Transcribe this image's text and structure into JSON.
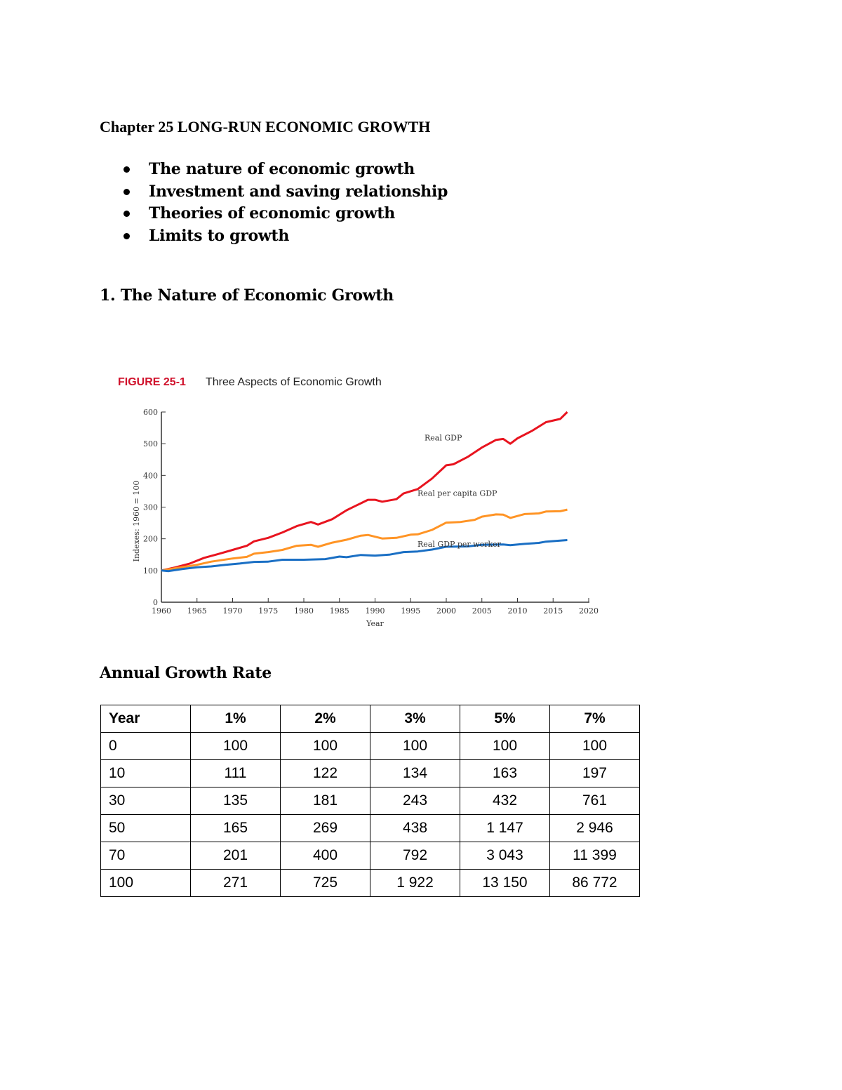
{
  "title": "Chapter 25 LONG-RUN ECONOMIC GROWTH",
  "topics": [
    "The nature of economic growth",
    "Investment and saving relationship",
    "Theories of economic growth",
    "Limits to growth"
  ],
  "section1": "1.  The Nature of Economic Growth",
  "figure": {
    "label": "FIGURE 25-1",
    "title": "Three Aspects of Economic Growth"
  },
  "chart_data": {
    "type": "line",
    "title": "Three Aspects of Economic Growth",
    "xlabel": "Year",
    "ylabel": "Indexes: 1960 = 100",
    "xlim": [
      1960,
      2020
    ],
    "ylim": [
      0,
      600
    ],
    "xticks": [
      1960,
      1965,
      1970,
      1975,
      1980,
      1985,
      1990,
      1995,
      2000,
      2005,
      2010,
      2015,
      2020
    ],
    "yticks": [
      0,
      100,
      200,
      300,
      400,
      500,
      600
    ],
    "grid": false,
    "series": [
      {
        "name": "Real GDP",
        "color": "#e8141f",
        "x": [
          1960,
          1962,
          1964,
          1966,
          1968,
          1970,
          1972,
          1973,
          1975,
          1977,
          1979,
          1981,
          1982,
          1984,
          1986,
          1988,
          1989,
          1990,
          1991,
          1993,
          1994,
          1996,
          1998,
          2000,
          2001,
          2003,
          2005,
          2007,
          2008,
          2009,
          2010,
          2012,
          2014,
          2016,
          2017
        ],
        "y": [
          100,
          110,
          122,
          140,
          152,
          165,
          178,
          192,
          203,
          220,
          240,
          253,
          245,
          262,
          290,
          312,
          323,
          323,
          317,
          325,
          343,
          357,
          390,
          432,
          435,
          458,
          488,
          512,
          515,
          500,
          517,
          540,
          568,
          578,
          600
        ]
      },
      {
        "name": "Real per capita GDP",
        "color": "#ff9425",
        "x": [
          1960,
          1965,
          1967,
          1970,
          1972,
          1973,
          1975,
          1977,
          1979,
          1981,
          1982,
          1984,
          1986,
          1988,
          1989,
          1991,
          1993,
          1995,
          1996,
          1998,
          2000,
          2002,
          2004,
          2005,
          2007,
          2008,
          2009,
          2011,
          2013,
          2014,
          2016,
          2017
        ],
        "y": [
          100,
          118,
          128,
          138,
          143,
          153,
          158,
          165,
          178,
          181,
          175,
          188,
          197,
          210,
          212,
          201,
          203,
          213,
          214,
          228,
          251,
          253,
          260,
          270,
          277,
          276,
          266,
          278,
          280,
          286,
          287,
          292
        ]
      },
      {
        "name": "Real GDP per worker",
        "color": "#1a6fc4",
        "x": [
          1960,
          1961,
          1963,
          1965,
          1967,
          1969,
          1971,
          1973,
          1975,
          1977,
          1980,
          1983,
          1985,
          1986,
          1988,
          1990,
          1992,
          1994,
          1996,
          1998,
          2000,
          2003,
          2005,
          2008,
          2009,
          2011,
          2013,
          2014,
          2017
        ],
        "y": [
          100,
          98,
          105,
          110,
          113,
          118,
          122,
          127,
          128,
          134,
          134,
          136,
          144,
          142,
          149,
          147,
          150,
          158,
          160,
          166,
          175,
          176,
          181,
          182,
          180,
          184,
          187,
          191,
          196
        ]
      }
    ]
  },
  "section2": "Annual Growth Rate",
  "table": {
    "headers": [
      "Year",
      "1%",
      "2%",
      "3%",
      "5%",
      "7%"
    ],
    "rows": [
      [
        "0",
        "100",
        "100",
        "100",
        "100",
        "100"
      ],
      [
        "10",
        "111",
        "122",
        "134",
        "163",
        "197"
      ],
      [
        "30",
        "135",
        "181",
        "243",
        "432",
        "761"
      ],
      [
        "50",
        "165",
        "269",
        "438",
        "1 147",
        "2 946"
      ],
      [
        "70",
        "201",
        "400",
        "792",
        "3 043",
        "11 399"
      ],
      [
        "100",
        "271",
        "725",
        "1 922",
        "13 150",
        "86 772"
      ]
    ]
  }
}
